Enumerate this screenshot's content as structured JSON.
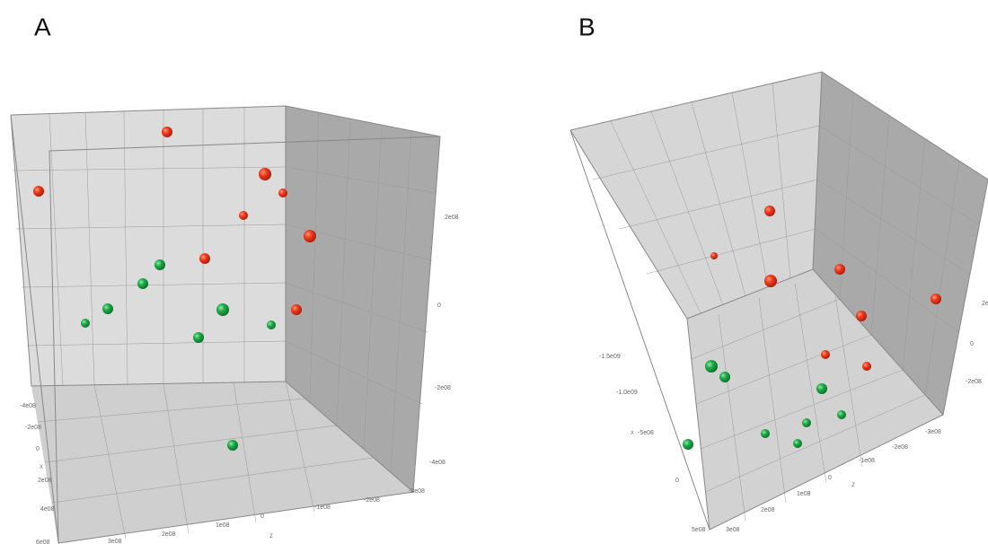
{
  "panels": [
    {
      "label": "A",
      "x_axis": {
        "title": "x",
        "ticks": [
          "-4e08",
          "-2e08",
          "0",
          "2e08",
          "4e08",
          "6e08"
        ]
      },
      "y_axis": {
        "ticks": [
          "2e08",
          "0",
          "-2e08",
          "-4e08"
        ]
      },
      "z_axis": {
        "title": "z",
        "ticks": [
          "3e08",
          "2e08",
          "1e08",
          "0",
          "-1e08",
          "-2e08",
          "-3e08"
        ]
      }
    },
    {
      "label": "B",
      "x_axis": {
        "title": "x",
        "ticks": [
          "-1.5e09",
          "-1.0e09",
          "-5e08",
          "0",
          "5e08"
        ]
      },
      "y_axis": {
        "ticks": [
          "2e",
          "0",
          "-2e08"
        ]
      },
      "z_axis": {
        "title": "z",
        "ticks": [
          "3e08",
          "2e08",
          "1e08",
          "0",
          "-1e08",
          "-2e08",
          "-3e08"
        ]
      }
    }
  ]
}
